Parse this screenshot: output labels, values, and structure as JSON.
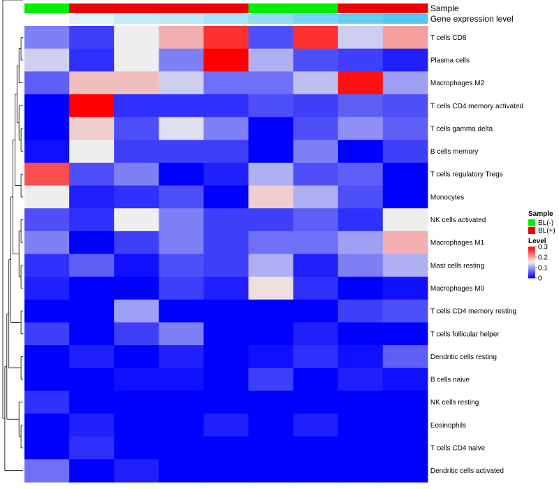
{
  "chart_data": {
    "type": "heatmap",
    "rows": [
      "T cells CD8",
      "Plasma cells",
      "Macrophages M2",
      "T cells CD4 memory activated",
      "T cells gamma delta",
      "B cells memory",
      "T cells regulatory  Tregs",
      "Monocytes",
      "NK cells activated",
      "Macrophages M1",
      "Mast cells resting",
      "Macrophages M0",
      "T cells CD4 memory resting",
      "T cells follicular helper",
      "Dendritic cells resting",
      "B cells naive",
      "NK cells resting",
      "Eosinophils",
      "T cells CD4 naive",
      "Dendritic cells activated"
    ],
    "values": [
      [
        0.08,
        0.04,
        0.15,
        0.19,
        0.27,
        0.05,
        0.27,
        0.13,
        0.2
      ],
      [
        0.13,
        0.03,
        0.15,
        0.08,
        0.31,
        0.11,
        0.05,
        0.04,
        0.02
      ],
      [
        0.06,
        0.18,
        0.18,
        0.13,
        0.07,
        0.07,
        0.12,
        0.29,
        0.1
      ],
      [
        0.0,
        0.31,
        0.03,
        0.03,
        0.03,
        0.05,
        0.04,
        0.06,
        0.05
      ],
      [
        0.0,
        0.17,
        0.05,
        0.14,
        0.08,
        0.0,
        0.05,
        0.09,
        0.06
      ],
      [
        0.01,
        0.15,
        0.04,
        0.04,
        0.04,
        0.0,
        0.08,
        0.0,
        0.04
      ],
      [
        0.25,
        0.05,
        0.08,
        0.0,
        0.02,
        0.11,
        0.05,
        0.06,
        0.0
      ],
      [
        0.15,
        0.02,
        0.03,
        0.05,
        0.0,
        0.17,
        0.11,
        0.05,
        0.0
      ],
      [
        0.05,
        0.03,
        0.15,
        0.08,
        0.04,
        0.04,
        0.06,
        0.03,
        0.15
      ],
      [
        0.08,
        0.0,
        0.04,
        0.08,
        0.04,
        0.07,
        0.07,
        0.1,
        0.19
      ],
      [
        0.03,
        0.06,
        0.01,
        0.05,
        0.04,
        0.11,
        0.02,
        0.08,
        0.11
      ],
      [
        0.02,
        0.0,
        0.0,
        0.04,
        0.02,
        0.16,
        0.03,
        0.0,
        0.01
      ],
      [
        0.0,
        0.0,
        0.1,
        0.0,
        0.0,
        0.0,
        0.0,
        0.04,
        0.05
      ],
      [
        0.04,
        0.0,
        0.04,
        0.08,
        0.0,
        0.0,
        0.02,
        0.0,
        0.0
      ],
      [
        0.0,
        0.02,
        0.0,
        0.02,
        0.0,
        0.01,
        0.03,
        0.01,
        0.06
      ],
      [
        0.0,
        0.0,
        0.01,
        0.01,
        0.0,
        0.04,
        0.0,
        0.02,
        0.01
      ],
      [
        0.03,
        0.0,
        0.0,
        0.0,
        0.0,
        0.0,
        0.0,
        0.0,
        0.0
      ],
      [
        0.0,
        0.02,
        0.0,
        0.0,
        0.02,
        0.0,
        0.02,
        0.0,
        0.0
      ],
      [
        0.0,
        0.03,
        0.0,
        0.0,
        0.0,
        0.0,
        0.0,
        0.0,
        0.0
      ],
      [
        0.07,
        0.0,
        0.02,
        0.0,
        0.0,
        0.0,
        0.0,
        0.0,
        0.0
      ]
    ],
    "value_range": [
      0,
      0.3
    ],
    "annotations": [
      {
        "name": "Sample",
        "values": [
          "BL(-)",
          "BL(+)",
          "BL(+)",
          "BL(+)",
          "BL(+)",
          "BL(-)",
          "BL(-)",
          "BL(+)",
          "BL(+)"
        ]
      },
      {
        "name": "Gene expression level",
        "values": [
          0.0,
          0.06,
          0.11,
          0.12,
          0.16,
          0.2,
          0.24,
          0.28,
          0.31
        ]
      }
    ],
    "legend": {
      "sample": {
        "title": "Sample",
        "items": [
          {
            "label": "BL(-)",
            "color": "#00ee00"
          },
          {
            "label": "BL(+)",
            "color": "#ee0000"
          }
        ]
      },
      "level": {
        "title": "Level",
        "ticks": [
          {
            "value": 0.3,
            "label": "0.3"
          },
          {
            "value": 0.2,
            "label": "0.2"
          },
          {
            "value": 0.1,
            "label": "0.1"
          },
          {
            "value": 0,
            "label": "0"
          }
        ]
      }
    },
    "colors": {
      "low": "#0000ff",
      "mid": "#eeeeee",
      "high": "#ff0000",
      "mid_value": 0.15,
      "expr_low": "#ffffff",
      "expr_high": "#56c8f0"
    },
    "row_dendrogram": [
      "((((((((((T cells CD8,Plasma cells),Macrophages M2),(T cells CD4 memory activated,(T cells gamma delta,B cells memory))),(T cells regulatory  Tregs,Monocytes)),((NK cells activated,Macrophages M1),(Mast cells resting,Macrophages M0))),(T cells CD4 memory resting,T cells follicular helper)),(Dendritic cells resting,B cells naive)),(NK cells resting,(Eosinophils,T cells CD4 naive))),Dendritic cells activated)"
    ]
  }
}
